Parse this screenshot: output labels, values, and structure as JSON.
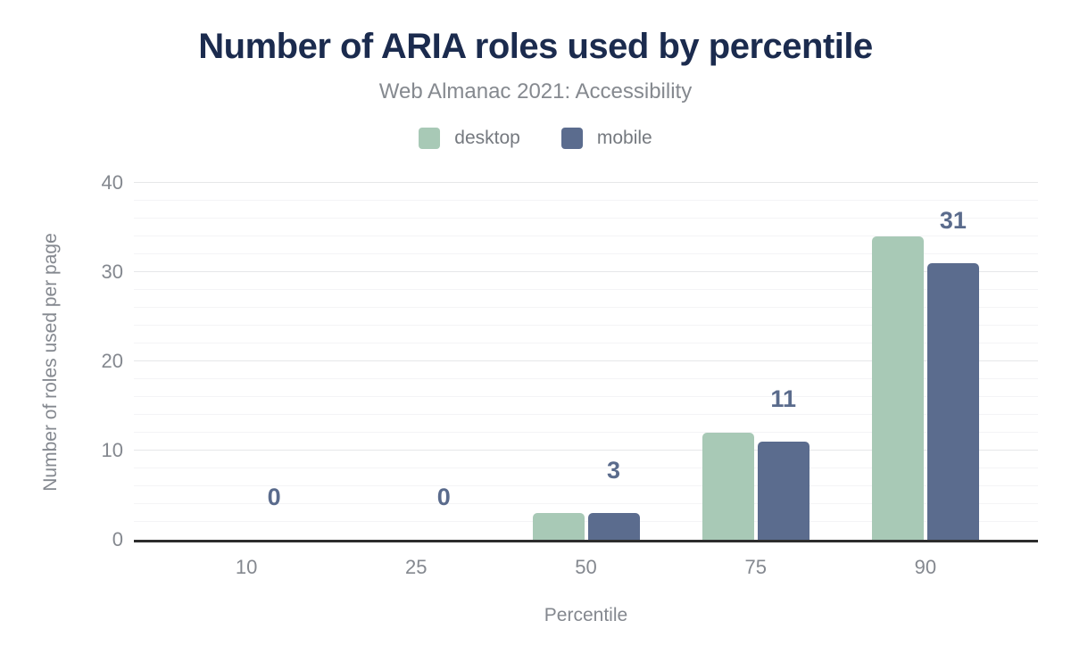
{
  "chart_data": {
    "type": "bar",
    "title": "Number of ARIA roles used by percentile",
    "subtitle": "Web Almanac 2021: Accessibility",
    "xlabel": "Percentile",
    "ylabel": "Number of roles used per page",
    "categories": [
      "10",
      "25",
      "50",
      "75",
      "90"
    ],
    "series": [
      {
        "name": "desktop",
        "color": "#a8c9b6",
        "values": [
          0,
          0,
          3,
          12,
          34
        ]
      },
      {
        "name": "mobile",
        "color": "#5b6c8e",
        "values": [
          0,
          0,
          3,
          11,
          31
        ]
      }
    ],
    "data_labels": {
      "from_series": "mobile",
      "values": [
        0,
        0,
        3,
        11,
        31
      ],
      "color": "#5a6b8c"
    },
    "ylim": [
      0,
      40
    ],
    "yticks_major": [
      0,
      10,
      20,
      30,
      40
    ],
    "ytick_minor_step": 2,
    "grid": "horizontal-only",
    "legend_position": "top"
  },
  "colors": {
    "title": "#1b2b4e",
    "subtitle": "#85898f",
    "axis_text": "#84888f",
    "baseline": "#2d2d2d",
    "grid_major": "#e6e7e9",
    "grid_minor": "#f4f4f6",
    "background": "#ffffff"
  }
}
